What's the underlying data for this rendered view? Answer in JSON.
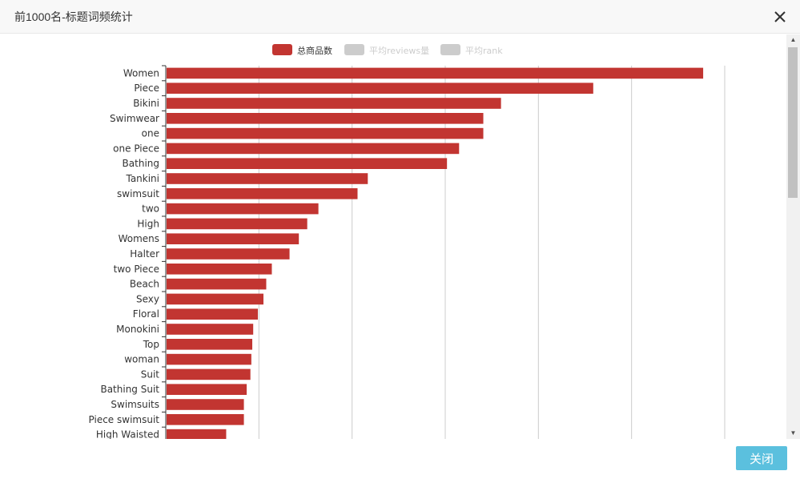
{
  "modal": {
    "title": "前1000名-标题词频统计",
    "close_button_label": "关闭"
  },
  "colors": {
    "bar": "#c23531",
    "legend_inactive": "#cccccc",
    "grid": "#cccccc",
    "close_button": "#5bc0de"
  },
  "chart_data": {
    "type": "bar",
    "orientation": "horizontal",
    "legend": [
      {
        "name": "总商品数",
        "active": true
      },
      {
        "name": "平均reviews量",
        "active": false
      },
      {
        "name": "平均rank",
        "active": false
      }
    ],
    "legend_position": "top-center",
    "grid": true,
    "categories": [
      "Women",
      "Piece",
      "Bikini",
      "Swimwear",
      "one",
      "one Piece",
      "Bathing",
      "Tankini",
      "swimsuit",
      "two",
      "High",
      "Womens",
      "Halter",
      "two Piece",
      "Beach",
      "Sexy",
      "Floral",
      "Monokini",
      "Top",
      "woman",
      "Suit",
      "Bathing Suit",
      "Swimsuits",
      "Piece swimsuit",
      "High Waisted"
    ],
    "series": [
      {
        "name": "总商品数",
        "values": [
          576,
          458,
          359,
          340,
          340,
          314,
          301,
          216,
          205,
          163,
          151,
          142,
          132,
          113,
          107,
          104,
          98,
          93,
          92,
          91,
          90,
          86,
          83,
          83,
          64
        ]
      }
    ],
    "xlim": [
      0,
      600
    ]
  }
}
